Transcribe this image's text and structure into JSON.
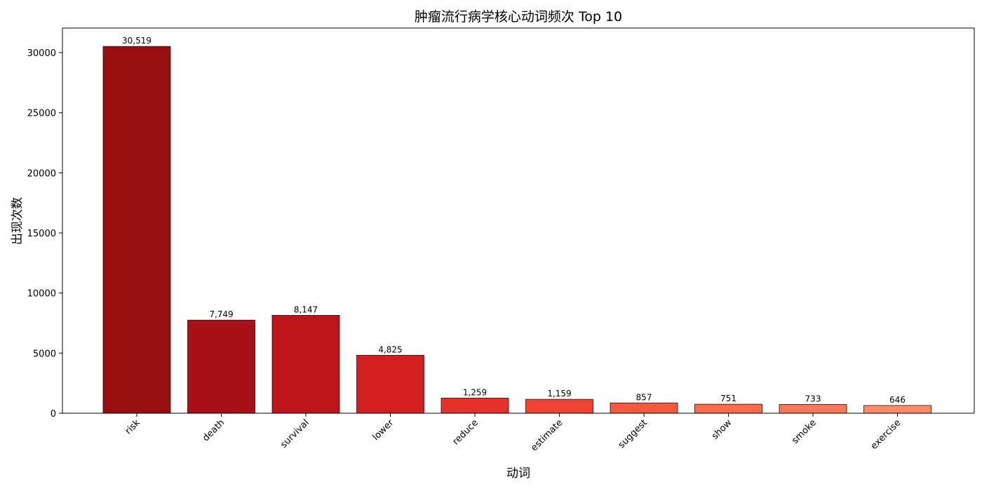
{
  "chart_data": {
    "type": "bar",
    "title": "肿瘤流行病学核心动词频次 Top 10",
    "xlabel": "动词",
    "ylabel": "出现次数",
    "categories": [
      "risk",
      "death",
      "survival",
      "lower",
      "reduce",
      "estimate",
      "suggest",
      "show",
      "smoke",
      "exercise"
    ],
    "values": [
      30519,
      7749,
      8147,
      4825,
      1259,
      1159,
      857,
      751,
      733,
      646
    ],
    "data_labels": [
      "30,519",
      "7,749",
      "8,147",
      "4,825",
      "1,259",
      "1,159",
      "857",
      "751",
      "733",
      "646"
    ],
    "colors": [
      "#970e13",
      "#a81119",
      "#bb151b",
      "#d21f20",
      "#e3302a",
      "#ee4332",
      "#f4583f",
      "#f96b4c",
      "#fb7858",
      "#fc8b6b"
    ],
    "ylim": [
      0,
      32045
    ],
    "yticks": [
      0,
      5000,
      10000,
      15000,
      20000,
      25000,
      30000
    ],
    "ytick_labels": [
      "0",
      "5000",
      "10000",
      "15000",
      "20000",
      "25000",
      "30000"
    ],
    "grid": false,
    "legend": "none"
  }
}
